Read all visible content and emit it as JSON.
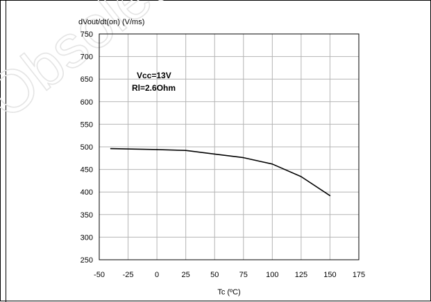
{
  "chart_data": {
    "type": "line",
    "title": "dVout/dt(on) (V/ms)",
    "xlabel": "Tc (ºC)",
    "ylabel": "",
    "xlim": [
      -50,
      175
    ],
    "ylim": [
      250,
      750
    ],
    "x_ticks": [
      "-50",
      "-25",
      "0",
      "25",
      "50",
      "75",
      "100",
      "125",
      "150",
      "175"
    ],
    "y_ticks": [
      "750",
      "700",
      "650",
      "600",
      "550",
      "500",
      "450",
      "400",
      "350",
      "300",
      "250"
    ],
    "grid": true,
    "annotations": [
      "Vcc=13V",
      "Rl=2.6Ohm"
    ],
    "series": [
      {
        "x": [
          -40,
          0,
          25,
          50,
          75,
          100,
          125,
          150
        ],
        "y": [
          496,
          494,
          492,
          484,
          476,
          462,
          434,
          392
        ]
      }
    ]
  },
  "watermark": "Obsolete P",
  "colors": {
    "line": "#000000",
    "grid": "#b4b4b4",
    "watermark": "#e4e4e4"
  }
}
